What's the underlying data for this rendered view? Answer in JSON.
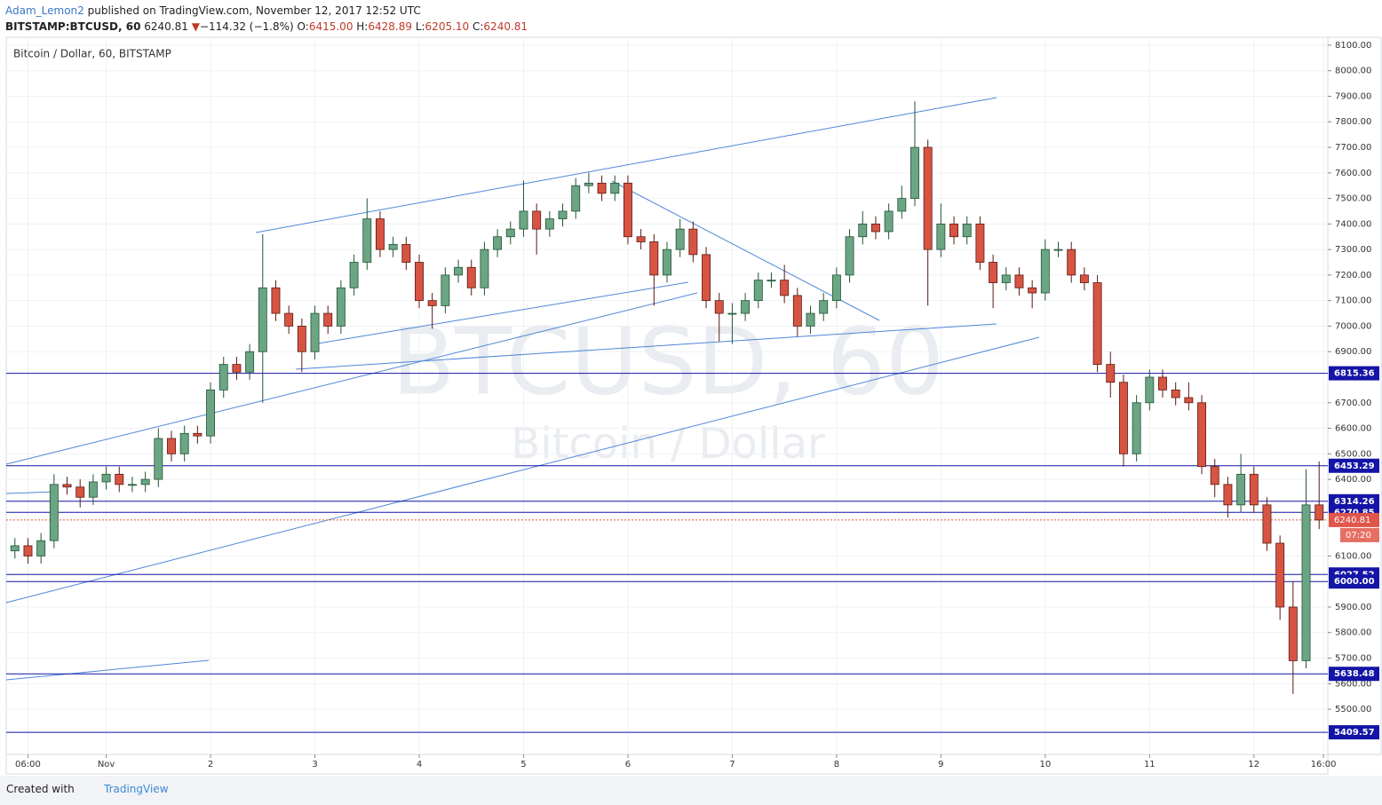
{
  "header": {
    "author": "Adam_Lemon2",
    "published": "published on TradingView.com, November 12, 2017 12:52 UTC",
    "symbol": "BITSTAMP:BTCUSD, 60",
    "last": "6240.81",
    "arrow": "▼",
    "change": "−114.32 (−1.8%)",
    "o_label": "O:",
    "o": "6415.00",
    "h_label": "H:",
    "h": "6428.89",
    "l_label": "L:",
    "l": "6205.10",
    "c_label": "C:",
    "c": "6240.81"
  },
  "footer": {
    "created": "Created with",
    "brand": "TradingView"
  },
  "chart_data": {
    "type": "candlestick",
    "legend": "Bitcoin / Dollar, 60, BITSTAMP",
    "watermark": "BTCUSD, 60",
    "watermark_sub": "Bitcoin / Dollar",
    "x": [
      "10-31 03:00",
      "10-31 06:00",
      "10-31 09:00",
      "10-31 12:00",
      "10-31 15:00",
      "10-31 18:00",
      "10-31 21:00",
      "11-01 00:00",
      "11-01 03:00",
      "11-01 06:00",
      "11-01 09:00",
      "11-01 12:00",
      "11-01 15:00",
      "11-01 18:00",
      "11-01 21:00",
      "11-02 00:00",
      "11-02 03:00",
      "11-02 06:00",
      "11-02 09:00",
      "11-02 12:00",
      "11-02 15:00",
      "11-02 18:00",
      "11-02 21:00",
      "11-03 00:00",
      "11-03 03:00",
      "11-03 06:00",
      "11-03 09:00",
      "11-03 12:00",
      "11-03 15:00",
      "11-03 18:00",
      "11-03 21:00",
      "11-04 00:00",
      "11-04 03:00",
      "11-04 06:00",
      "11-04 09:00",
      "11-04 12:00",
      "11-04 15:00",
      "11-04 18:00",
      "11-04 21:00",
      "11-05 00:00",
      "11-05 03:00",
      "11-05 06:00",
      "11-05 09:00",
      "11-05 12:00",
      "11-05 15:00",
      "11-05 18:00",
      "11-05 21:00",
      "11-06 00:00",
      "11-06 03:00",
      "11-06 06:00",
      "11-06 09:00",
      "11-06 12:00",
      "11-06 15:00",
      "11-06 18:00",
      "11-06 21:00",
      "11-07 00:00",
      "11-07 03:00",
      "11-07 06:00",
      "11-07 09:00",
      "11-07 12:00",
      "11-07 15:00",
      "11-07 18:00",
      "11-07 21:00",
      "11-08 00:00",
      "11-08 03:00",
      "11-08 06:00",
      "11-08 09:00",
      "11-08 12:00",
      "11-08 15:00",
      "11-08 18:00",
      "11-08 21:00",
      "11-09 00:00",
      "11-09 03:00",
      "11-09 06:00",
      "11-09 09:00",
      "11-09 12:00",
      "11-09 15:00",
      "11-09 18:00",
      "11-09 21:00",
      "11-10 00:00",
      "11-10 03:00",
      "11-10 06:00",
      "11-10 09:00",
      "11-10 12:00",
      "11-10 15:00",
      "11-10 18:00",
      "11-10 21:00",
      "11-11 00:00",
      "11-11 03:00",
      "11-11 06:00",
      "11-11 09:00",
      "11-11 12:00",
      "11-11 15:00",
      "11-11 18:00",
      "11-11 21:00",
      "11-12 00:00",
      "11-12 03:00",
      "11-12 06:00",
      "11-12 09:00",
      "11-12 12:00",
      "11-12 15:00"
    ],
    "series": [
      {
        "name": "Bitcoin / Dollar, 60, BITSTAMP",
        "up_color": "#6ba583",
        "up_border": "#225437",
        "down_color": "#d75442",
        "down_border": "#5b1a13",
        "values": [
          [
            6120,
            6170,
            6090,
            6140
          ],
          [
            6140,
            6170,
            6070,
            6100
          ],
          [
            6100,
            6190,
            6070,
            6160
          ],
          [
            6160,
            6420,
            6130,
            6380
          ],
          [
            6380,
            6410,
            6340,
            6370
          ],
          [
            6370,
            6400,
            6290,
            6330
          ],
          [
            6330,
            6420,
            6300,
            6390
          ],
          [
            6390,
            6450,
            6360,
            6420
          ],
          [
            6420,
            6450,
            6350,
            6380
          ],
          [
            6380,
            6410,
            6350,
            6380
          ],
          [
            6380,
            6430,
            6350,
            6400
          ],
          [
            6400,
            6600,
            6370,
            6560
          ],
          [
            6560,
            6590,
            6470,
            6500
          ],
          [
            6500,
            6610,
            6470,
            6580
          ],
          [
            6580,
            6610,
            6540,
            6570
          ],
          [
            6570,
            6780,
            6540,
            6750
          ],
          [
            6750,
            6880,
            6720,
            6850
          ],
          [
            6850,
            6880,
            6790,
            6820
          ],
          [
            6820,
            6930,
            6790,
            6900
          ],
          [
            6900,
            7360,
            6700,
            7150
          ],
          [
            7150,
            7180,
            7020,
            7050
          ],
          [
            7050,
            7080,
            6970,
            7000
          ],
          [
            7000,
            7030,
            6820,
            6900
          ],
          [
            6900,
            7080,
            6870,
            7050
          ],
          [
            7050,
            7080,
            6970,
            7000
          ],
          [
            7000,
            7180,
            6970,
            7150
          ],
          [
            7150,
            7280,
            7120,
            7250
          ],
          [
            7250,
            7500,
            7220,
            7420
          ],
          [
            7420,
            7450,
            7270,
            7300
          ],
          [
            7300,
            7350,
            7270,
            7320
          ],
          [
            7320,
            7350,
            7220,
            7250
          ],
          [
            7250,
            7280,
            7070,
            7100
          ],
          [
            7100,
            7130,
            6990,
            7080
          ],
          [
            7080,
            7230,
            7050,
            7200
          ],
          [
            7200,
            7260,
            7170,
            7230
          ],
          [
            7230,
            7260,
            7120,
            7150
          ],
          [
            7150,
            7330,
            7120,
            7300
          ],
          [
            7300,
            7380,
            7270,
            7350
          ],
          [
            7350,
            7410,
            7320,
            7380
          ],
          [
            7380,
            7570,
            7350,
            7450
          ],
          [
            7450,
            7480,
            7280,
            7380
          ],
          [
            7380,
            7450,
            7350,
            7420
          ],
          [
            7420,
            7480,
            7390,
            7450
          ],
          [
            7450,
            7580,
            7420,
            7550
          ],
          [
            7550,
            7600,
            7520,
            7560
          ],
          [
            7560,
            7590,
            7490,
            7520
          ],
          [
            7520,
            7590,
            7490,
            7560
          ],
          [
            7560,
            7590,
            7320,
            7350
          ],
          [
            7350,
            7380,
            7300,
            7330
          ],
          [
            7330,
            7360,
            7080,
            7200
          ],
          [
            7200,
            7330,
            7170,
            7300
          ],
          [
            7300,
            7420,
            7270,
            7380
          ],
          [
            7380,
            7410,
            7250,
            7280
          ],
          [
            7280,
            7310,
            7070,
            7100
          ],
          [
            7100,
            7130,
            6940,
            7050
          ],
          [
            7050,
            7090,
            6930,
            7050
          ],
          [
            7050,
            7130,
            7020,
            7100
          ],
          [
            7100,
            7210,
            7070,
            7180
          ],
          [
            7180,
            7210,
            7150,
            7180
          ],
          [
            7180,
            7240,
            7090,
            7120
          ],
          [
            7120,
            7150,
            6960,
            7000
          ],
          [
            7000,
            7080,
            6970,
            7050
          ],
          [
            7050,
            7130,
            7020,
            7100
          ],
          [
            7100,
            7230,
            7070,
            7200
          ],
          [
            7200,
            7380,
            7170,
            7350
          ],
          [
            7350,
            7450,
            7320,
            7400
          ],
          [
            7400,
            7430,
            7340,
            7370
          ],
          [
            7370,
            7480,
            7340,
            7450
          ],
          [
            7450,
            7550,
            7420,
            7500
          ],
          [
            7500,
            7880,
            7470,
            7700
          ],
          [
            7700,
            7730,
            7080,
            7300
          ],
          [
            7300,
            7480,
            7270,
            7400
          ],
          [
            7400,
            7430,
            7320,
            7350
          ],
          [
            7350,
            7430,
            7320,
            7400
          ],
          [
            7400,
            7430,
            7220,
            7250
          ],
          [
            7250,
            7280,
            7070,
            7170
          ],
          [
            7170,
            7230,
            7140,
            7200
          ],
          [
            7200,
            7230,
            7120,
            7150
          ],
          [
            7150,
            7180,
            7070,
            7130
          ],
          [
            7130,
            7340,
            7100,
            7300
          ],
          [
            7300,
            7330,
            7270,
            7300
          ],
          [
            7300,
            7330,
            7170,
            7200
          ],
          [
            7200,
            7230,
            7140,
            7170
          ],
          [
            7170,
            7200,
            6820,
            6850
          ],
          [
            6850,
            6900,
            6720,
            6780
          ],
          [
            6780,
            6810,
            6450,
            6500
          ],
          [
            6500,
            6730,
            6470,
            6700
          ],
          [
            6700,
            6830,
            6670,
            6800
          ],
          [
            6800,
            6830,
            6720,
            6750
          ],
          [
            6750,
            6780,
            6690,
            6720
          ],
          [
            6720,
            6780,
            6670,
            6700
          ],
          [
            6700,
            6730,
            6420,
            6450
          ],
          [
            6450,
            6480,
            6330,
            6380
          ],
          [
            6380,
            6410,
            6250,
            6300
          ],
          [
            6300,
            6500,
            6270,
            6420
          ],
          [
            6420,
            6450,
            6270,
            6300
          ],
          [
            6300,
            6330,
            6120,
            6150
          ],
          [
            6150,
            6180,
            5850,
            5900
          ],
          [
            5900,
            6000,
            5560,
            5690
          ],
          [
            5690,
            6440,
            5660,
            6300
          ],
          [
            6300,
            6470,
            6205.1,
            6240.81
          ]
        ]
      }
    ],
    "xlim": [
      "10-31 01:00",
      "11-12 17:00"
    ],
    "xticks": [
      {
        "value": "10-31 06:00",
        "label": "06:00"
      },
      {
        "value": "11-01 00:00",
        "label": "Nov"
      },
      {
        "value": "11-02 00:00",
        "label": "2"
      },
      {
        "value": "11-03 00:00",
        "label": "3"
      },
      {
        "value": "11-04 00:00",
        "label": "4"
      },
      {
        "value": "11-05 00:00",
        "label": "5"
      },
      {
        "value": "11-06 00:00",
        "label": "6"
      },
      {
        "value": "11-07 00:00",
        "label": "7"
      },
      {
        "value": "11-08 00:00",
        "label": "8"
      },
      {
        "value": "11-09 00:00",
        "label": "9"
      },
      {
        "value": "11-10 00:00",
        "label": "10"
      },
      {
        "value": "11-11 00:00",
        "label": "11"
      },
      {
        "value": "11-12 00:00",
        "label": "12"
      },
      {
        "value": "11-12 16:00",
        "label": "16:00"
      }
    ],
    "ylim": [
      5323,
      8131
    ],
    "yticks": [
      {
        "value": 5500,
        "label": "5500.00"
      },
      {
        "value": 5600,
        "label": "5600.00"
      },
      {
        "value": 5700,
        "label": "5700.00"
      },
      {
        "value": 5800,
        "label": "5800.00"
      },
      {
        "value": 5900,
        "label": "5900.00"
      },
      {
        "value": 6100,
        "label": "6100.00"
      },
      {
        "value": 6400,
        "label": "6400.00"
      },
      {
        "value": 6500,
        "label": "6500.00"
      },
      {
        "value": 6600,
        "label": "6600.00"
      },
      {
        "value": 6700,
        "label": "6700.00"
      },
      {
        "value": 6900,
        "label": "6900.00"
      },
      {
        "value": 7000,
        "label": "7000.00"
      },
      {
        "value": 7100,
        "label": "7100.00"
      },
      {
        "value": 7200,
        "label": "7200.00"
      },
      {
        "value": 7300,
        "label": "7300.00"
      },
      {
        "value": 7400,
        "label": "7400.00"
      },
      {
        "value": 7500,
        "label": "7500.00"
      },
      {
        "value": 7600,
        "label": "7600.00"
      },
      {
        "value": 7700,
        "label": "7700.00"
      },
      {
        "value": 7800,
        "label": "7800.00"
      },
      {
        "value": 7900,
        "label": "7900.00"
      },
      {
        "value": 8000,
        "label": "8000.00"
      },
      {
        "value": 8100,
        "label": "8100.00"
      }
    ],
    "grid": true,
    "levels": [
      6815.36,
      6453.29,
      6314.26,
      6270.85,
      6027.52,
      {
        "value": 6000,
        "label": "6000.00"
      },
      5638.48,
      5409.57
    ],
    "level_color": "#1414a6",
    "last_price": 6240.81,
    "last_color": "#e0564a",
    "countdown": "07:20"
  }
}
